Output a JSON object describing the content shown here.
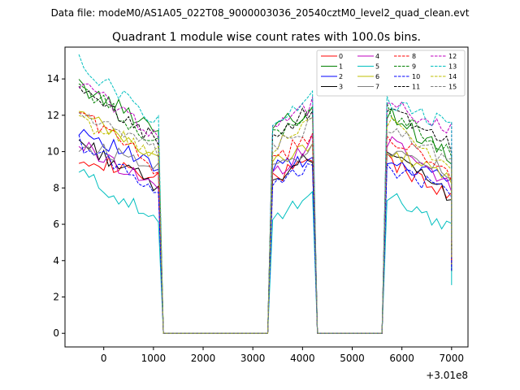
{
  "chart_data": {
    "type": "line",
    "suptitle": "Data file: modeM0/AS1A05_022T08_9000003036_20540cztM0_level2_quad_clean.evt",
    "title": "Quadrant 1 module wise count rates with 100.0s bins.",
    "xlabel": "",
    "ylabel": "",
    "x_offset_label": "+3.01e8",
    "xlim": [
      -780,
      7330
    ],
    "ylim": [
      -0.75,
      15.75
    ],
    "xticks": [
      0,
      1000,
      2000,
      3000,
      4000,
      5000,
      6000,
      7000
    ],
    "yticks": [
      0,
      2,
      4,
      6,
      8,
      10,
      12,
      14
    ],
    "legend_position": "top-right",
    "segments": [
      {
        "start": -500,
        "end": 1100
      },
      {
        "start": 1200,
        "end": 3300
      },
      {
        "start": 3400,
        "end": 4200
      },
      {
        "start": 4300,
        "end": 5600
      },
      {
        "start": 5700,
        "end": 6950
      },
      {
        "start": 7000,
        "end": 7000
      }
    ],
    "series": [
      {
        "name": "0",
        "color": "#ff0000",
        "dashed": false,
        "levels": [
          9.8,
          8.4,
          9.5,
          7.6
        ]
      },
      {
        "name": "1",
        "color": "#008000",
        "dashed": false,
        "levels": [
          13.6,
          11.3,
          12.2,
          9.6
        ]
      },
      {
        "name": "2",
        "color": "#0000ff",
        "dashed": false,
        "levels": [
          11.3,
          9.0,
          9.6,
          8.3
        ]
      },
      {
        "name": "3",
        "color": "#000000",
        "dashed": false,
        "levels": [
          10.6,
          8.0,
          9.8,
          7.6
        ]
      },
      {
        "name": "4",
        "color": "#bf00bf",
        "dashed": false,
        "levels": [
          10.4,
          8.1,
          10.7,
          8.0
        ]
      },
      {
        "name": "5",
        "color": "#00bfbf",
        "dashed": false,
        "levels": [
          8.9,
          6.1,
          7.5,
          5.9
        ]
      },
      {
        "name": "6",
        "color": "#bfbf00",
        "dashed": false,
        "levels": [
          12.1,
          9.6,
          10.1,
          8.4
        ]
      },
      {
        "name": "7",
        "color": "#808080",
        "dashed": false,
        "levels": [
          10.3,
          9.4,
          10.0,
          8.9
        ]
      },
      {
        "name": "8",
        "color": "#ff0000",
        "dashed": true,
        "levels": [
          12.3,
          9.0,
          11.0,
          8.6
        ]
      },
      {
        "name": "9",
        "color": "#008000",
        "dashed": true,
        "levels": [
          13.7,
          10.4,
          12.3,
          9.9
        ]
      },
      {
        "name": "10",
        "color": "#0000ff",
        "dashed": true,
        "levels": [
          10.5,
          7.9,
          9.1,
          7.7
        ]
      },
      {
        "name": "11",
        "color": "#000000",
        "dashed": true,
        "levels": [
          13.3,
          10.6,
          12.4,
          10.3
        ]
      },
      {
        "name": "12",
        "color": "#bf00bf",
        "dashed": true,
        "levels": [
          13.8,
          10.9,
          12.6,
          11.2
        ]
      },
      {
        "name": "13",
        "color": "#00bfbf",
        "dashed": true,
        "levels": [
          14.9,
          11.6,
          12.9,
          11.3
        ]
      },
      {
        "name": "14",
        "color": "#bfbf00",
        "dashed": true,
        "levels": [
          11.7,
          9.9,
          11.7,
          9.2
        ]
      },
      {
        "name": "15",
        "color": "#808080",
        "dashed": true,
        "levels": [
          12.2,
          9.9,
          11.5,
          9.5
        ]
      }
    ]
  }
}
